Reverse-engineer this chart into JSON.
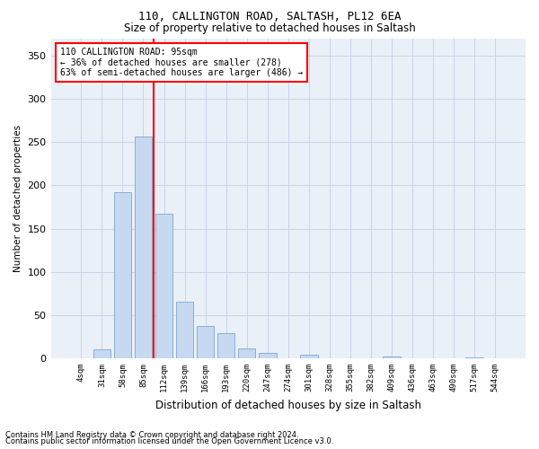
{
  "title1": "110, CALLINGTON ROAD, SALTASH, PL12 6EA",
  "title2": "Size of property relative to detached houses in Saltash",
  "xlabel": "Distribution of detached houses by size in Saltash",
  "ylabel": "Number of detached properties",
  "footer1": "Contains HM Land Registry data © Crown copyright and database right 2024.",
  "footer2": "Contains public sector information licensed under the Open Government Licence v3.0.",
  "bar_labels": [
    "4sqm",
    "31sqm",
    "58sqm",
    "85sqm",
    "112sqm",
    "139sqm",
    "166sqm",
    "193sqm",
    "220sqm",
    "247sqm",
    "274sqm",
    "301sqm",
    "328sqm",
    "355sqm",
    "382sqm",
    "409sqm",
    "436sqm",
    "463sqm",
    "490sqm",
    "517sqm",
    "544sqm"
  ],
  "bar_values": [
    0,
    10,
    192,
    256,
    167,
    65,
    37,
    29,
    11,
    6,
    0,
    4,
    0,
    0,
    0,
    2,
    0,
    0,
    0,
    1,
    0
  ],
  "bar_color": "#c6d9f1",
  "bar_edge_color": "#7ba7d0",
  "grid_color": "#c8d4e8",
  "bg_color": "#eaf0f8",
  "annotation_text_line1": "110 CALLINGTON ROAD: 95sqm",
  "annotation_text_line2": "← 36% of detached houses are smaller (278)",
  "annotation_text_line3": "63% of semi-detached houses are larger (486) →",
  "red_line_x": 3.5,
  "ylim": [
    0,
    370
  ],
  "yticks": [
    0,
    50,
    100,
    150,
    200,
    250,
    300,
    350
  ]
}
